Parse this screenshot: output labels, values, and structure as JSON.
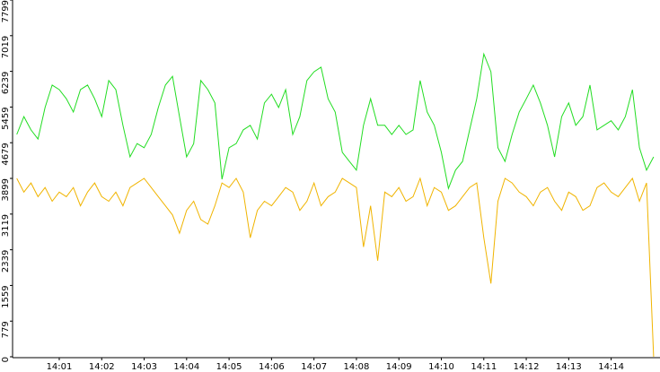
{
  "chart_data": {
    "type": "line",
    "categories": [
      null,
      null,
      null,
      null,
      null,
      null,
      "14:01",
      null,
      null,
      null,
      null,
      null,
      "14:02",
      null,
      null,
      null,
      null,
      null,
      "14:03",
      null,
      null,
      null,
      null,
      null,
      "14:04",
      null,
      null,
      null,
      null,
      null,
      "14:05",
      null,
      null,
      null,
      null,
      null,
      "14:06",
      null,
      null,
      null,
      null,
      null,
      "14:07",
      null,
      null,
      null,
      null,
      null,
      "14:08",
      null,
      null,
      null,
      null,
      null,
      "14:09",
      null,
      null,
      null,
      null,
      null,
      "14:10",
      null,
      null,
      null,
      null,
      null,
      "14:11",
      null,
      null,
      null,
      null,
      null,
      "14:12",
      null,
      null,
      null,
      null,
      null,
      "14:13",
      null,
      null,
      null,
      null,
      null,
      "14:14",
      null,
      null,
      null,
      null,
      null,
      null
    ],
    "series": [
      {
        "color": "#22dd22",
        "values": [
          4860,
          5250,
          4960,
          4760,
          5450,
          5940,
          5840,
          5640,
          5350,
          5840,
          5940,
          5640,
          5250,
          6040,
          5840,
          5060,
          4370,
          4660,
          4570,
          4860,
          5450,
          5940,
          6130,
          5250,
          4370,
          4660,
          6040,
          5840,
          5550,
          3880,
          4570,
          4660,
          4960,
          5060,
          4760,
          5550,
          5740,
          5450,
          5840,
          4860,
          5250,
          6040,
          6230,
          6330,
          5640,
          5350,
          4470,
          4270,
          4080,
          5060,
          5640,
          5060,
          5060,
          4860,
          5060,
          4860,
          4960,
          6040,
          5350,
          5060,
          4470,
          3680,
          4080,
          4270,
          4960,
          5640,
          6620,
          6230,
          4570,
          4270,
          4860,
          5350,
          5640,
          5940,
          5550,
          5060,
          4370,
          5250,
          5550,
          5060,
          5250,
          5940,
          4960,
          5060,
          5160,
          4960,
          5250,
          5840,
          4570,
          4080,
          4370
        ]
      },
      {
        "color": "#f0b400",
        "values": [
          3900,
          3600,
          3800,
          3500,
          3700,
          3400,
          3600,
          3500,
          3700,
          3300,
          3600,
          3800,
          3500,
          3400,
          3600,
          3300,
          3700,
          3800,
          3900,
          3700,
          3500,
          3300,
          3100,
          2700,
          3200,
          3400,
          3000,
          2900,
          3300,
          3800,
          3700,
          3900,
          3600,
          2600,
          3200,
          3400,
          3300,
          3500,
          3700,
          3600,
          3200,
          3400,
          3800,
          3300,
          3500,
          3600,
          3900,
          3800,
          3700,
          2400,
          3300,
          2100,
          3600,
          3500,
          3700,
          3400,
          3500,
          3900,
          3300,
          3700,
          3600,
          3200,
          3300,
          3500,
          3700,
          3800,
          2600,
          1600,
          3400,
          3900,
          3800,
          3600,
          3500,
          3300,
          3600,
          3700,
          3400,
          3200,
          3600,
          3500,
          3200,
          3300,
          3700,
          3800,
          3600,
          3500,
          3700,
          3900,
          3400,
          3800,
          0
        ]
      }
    ],
    "ylim": [
      0,
      7799
    ],
    "yticks": [
      0,
      779,
      1559,
      2339,
      3119,
      3899,
      4679,
      5459,
      6239,
      7019,
      7799
    ]
  }
}
